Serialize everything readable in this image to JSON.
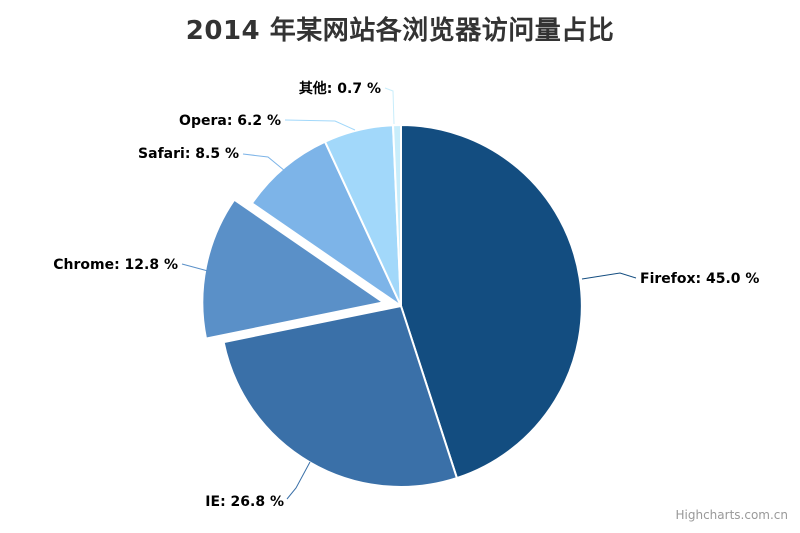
{
  "title": "2014 年某网站各浏览器访问量占比",
  "credits": {
    "label": "Highcharts.com.cn"
  },
  "chart_data": {
    "type": "pie",
    "title": "2014 年某网站各浏览器访问量占比",
    "unit": "%",
    "start_angle_deg": 0,
    "direction": "clockwise",
    "legend": "none",
    "border_color": "#ffffff",
    "slices": [
      {
        "id": "firefox",
        "name": "Firefox",
        "value": 45.0,
        "label": "Firefox: 45.0 %",
        "color": "#134d80",
        "sliced": false
      },
      {
        "id": "ie",
        "name": "IE",
        "value": 26.8,
        "label": "IE: 26.8 %",
        "color": "#3a70a8",
        "sliced": false
      },
      {
        "id": "chrome",
        "name": "Chrome",
        "value": 12.8,
        "label": "Chrome: 12.8 %",
        "color": "#5a90c8",
        "sliced": true
      },
      {
        "id": "safari",
        "name": "Safari",
        "value": 8.5,
        "label": "Safari: 8.5 %",
        "color": "#7db4e8",
        "sliced": false
      },
      {
        "id": "opera",
        "name": "Opera",
        "value": 6.2,
        "label": "Opera: 6.2 %",
        "color": "#a2d8fa",
        "sliced": false
      },
      {
        "id": "other",
        "name": "其他",
        "value": 0.7,
        "label": "其他: 0.7 %",
        "color": "#c8edfb",
        "sliced": false
      }
    ],
    "credits": "Highcharts.com.cn"
  }
}
